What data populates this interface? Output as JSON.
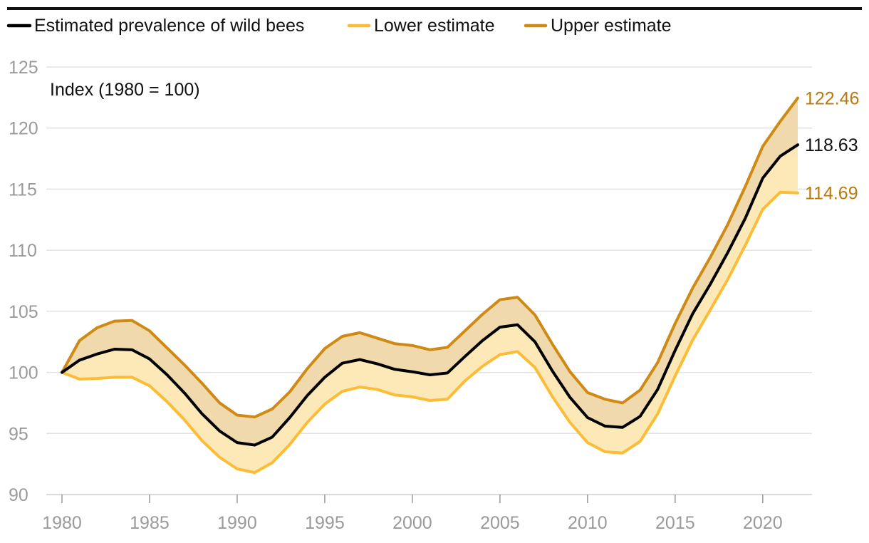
{
  "chart_data": {
    "type": "line",
    "ylabel": "Index (1980 = 100)",
    "ylim": [
      90,
      125
    ],
    "xlim": [
      1980,
      2022
    ],
    "yticks": [
      90,
      95,
      100,
      105,
      110,
      115,
      120,
      125
    ],
    "xticks": [
      1980,
      1985,
      1990,
      1995,
      2000,
      2005,
      2010,
      2015,
      2020
    ],
    "grid": true,
    "legend_position": "top-left",
    "x": [
      1980,
      1981,
      1982,
      1983,
      1984,
      1985,
      1986,
      1987,
      1988,
      1989,
      1990,
      1991,
      1992,
      1993,
      1994,
      1995,
      1996,
      1997,
      1998,
      1999,
      2000,
      2001,
      2002,
      2003,
      2004,
      2005,
      2006,
      2007,
      2008,
      2009,
      2010,
      2011,
      2012,
      2013,
      2014,
      2015,
      2016,
      2017,
      2018,
      2019,
      2020,
      2021,
      2022
    ],
    "series": [
      {
        "name": "Estimated prevalence of wild bees",
        "color": "#000000",
        "end_label": "118.63",
        "values": [
          100,
          101,
          101.5,
          101.9,
          101.85,
          101.1,
          99.8,
          98.3,
          96.6,
          95.2,
          94.25,
          94.05,
          94.7,
          96.3,
          98.1,
          99.6,
          100.75,
          101.05,
          100.7,
          100.25,
          100.05,
          99.8,
          99.95,
          101.3,
          102.6,
          103.7,
          103.9,
          102.5,
          100.1,
          97.95,
          96.3,
          95.6,
          95.5,
          96.4,
          98.6,
          101.8,
          104.8,
          107.2,
          109.8,
          112.6,
          115.9,
          117.7,
          118.63
        ]
      },
      {
        "name": "Lower estimate",
        "color": "#fbbc38",
        "end_label": "114.69",
        "values": [
          100,
          99.45,
          99.5,
          99.6,
          99.6,
          98.9,
          97.6,
          96.1,
          94.4,
          93.05,
          92.1,
          91.8,
          92.6,
          94.1,
          95.9,
          97.4,
          98.45,
          98.8,
          98.6,
          98.15,
          98.0,
          97.7,
          97.8,
          99.3,
          100.5,
          101.45,
          101.7,
          100.4,
          98.0,
          95.9,
          94.25,
          93.5,
          93.4,
          94.35,
          96.6,
          99.7,
          102.65,
          105.1,
          107.6,
          110.4,
          113.35,
          114.75,
          114.69
        ]
      },
      {
        "name": "Upper estimate",
        "color": "#cf8a14",
        "end_label": "122.46",
        "values": [
          100,
          102.6,
          103.65,
          104.2,
          104.25,
          103.4,
          102.0,
          100.6,
          99.1,
          97.5,
          96.5,
          96.35,
          97.0,
          98.4,
          100.3,
          101.95,
          102.95,
          103.25,
          102.8,
          102.35,
          102.2,
          101.85,
          102.05,
          103.4,
          104.75,
          105.95,
          106.15,
          104.7,
          102.3,
          100.05,
          98.35,
          97.8,
          97.5,
          98.55,
          100.8,
          104.0,
          106.9,
          109.4,
          112.1,
          115.2,
          118.5,
          120.55,
          122.46
        ]
      }
    ],
    "band_color": "#fbbc38",
    "end_label_color_upper_lower": "#b8790e"
  }
}
